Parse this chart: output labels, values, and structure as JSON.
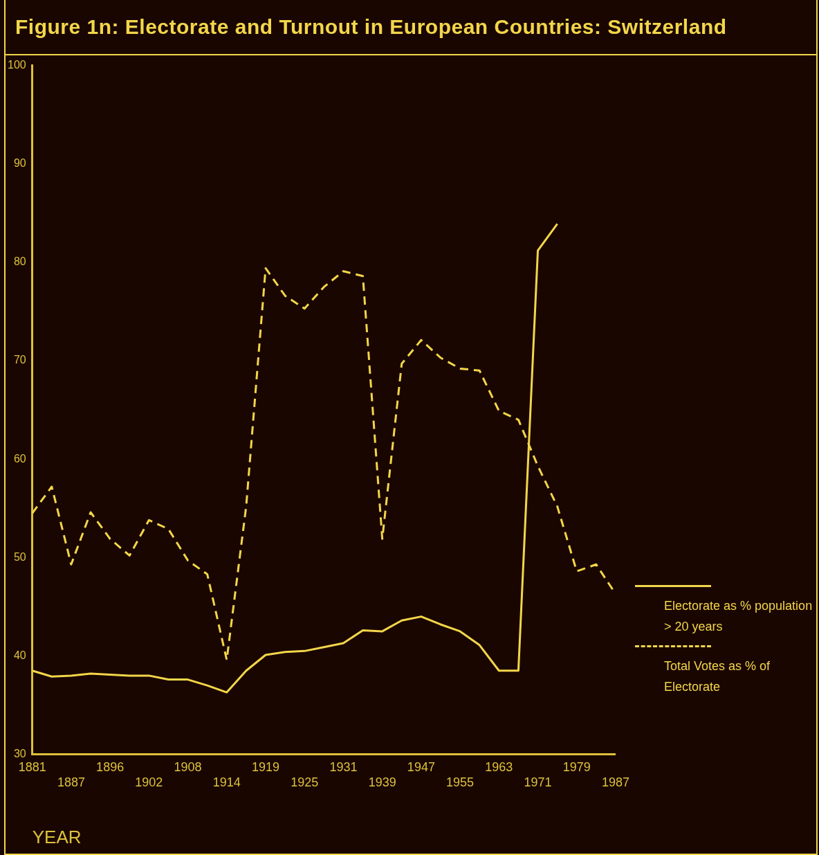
{
  "chart_data": {
    "type": "line",
    "title": "Figure 1n: Electorate and Turnout in European Countries: Switzerland",
    "xlabel": "YEAR",
    "categories": [
      "1881",
      null,
      "1887",
      null,
      "1896",
      null,
      "1902",
      null,
      "1908",
      null,
      "1914",
      null,
      "1919",
      null,
      "1925",
      null,
      "1931",
      null,
      "1939",
      null,
      "1947",
      null,
      "1955",
      null,
      "1963",
      null,
      "1971",
      null,
      "1979",
      null,
      "1987"
    ],
    "series": [
      {
        "name": "Electorate as % population > 20 years",
        "color": "#f2d64a",
        "line_style": "solid",
        "values": [
          38.5,
          37.9,
          38.0,
          38.2,
          38.1,
          38.0,
          38.0,
          37.6,
          37.6,
          37.0,
          36.3,
          38.5,
          40.1,
          40.4,
          40.5,
          40.9,
          41.3,
          42.6,
          42.5,
          43.6,
          44.0,
          43.2,
          42.5,
          41.1,
          38.5,
          38.5,
          81.2,
          83.9,
          null,
          null,
          null
        ]
      },
      {
        "name": "Total Votes as % of Electorate",
        "color": "#f2d64a",
        "line_style": "dashed",
        "values": [
          54.5,
          57.2,
          49.3,
          54.6,
          51.9,
          50.2,
          53.8,
          52.9,
          49.7,
          48.3,
          39.6,
          55.2,
          79.4,
          76.6,
          75.3,
          77.5,
          79.1,
          78.6,
          51.9,
          69.7,
          72.1,
          70.3,
          69.2,
          69.0,
          64.9,
          64.0,
          59.3,
          55.2,
          48.6,
          49.3,
          46.3
        ]
      }
    ],
    "ylim": [
      30,
      100
    ],
    "yticks": [
      30,
      40,
      50,
      60,
      70,
      80,
      90,
      100
    ],
    "grid": false,
    "legend": "right",
    "marker": "none"
  }
}
